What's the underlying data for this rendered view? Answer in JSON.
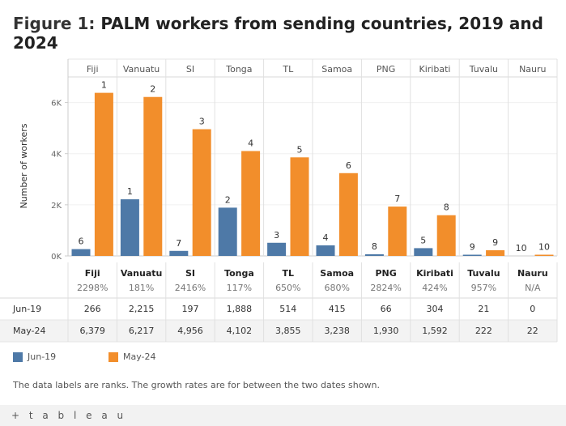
{
  "title": {
    "prefix": "Figure 1:",
    "main": "PALM workers from sending countries, 2019 and 2024"
  },
  "legend": {
    "jun19": "Jun-19",
    "may24": "May-24"
  },
  "note": "The data labels are ranks. The growth rates are for between the two dates shown.",
  "footer": {
    "logo": "+ t a b l e a u"
  },
  "colors": {
    "jun19": "#4e79a7",
    "may24": "#f28e2b"
  },
  "chart_data": {
    "type": "bar",
    "title": "Figure 1: PALM workers from sending countries, 2019 and 2024",
    "ylabel": "Number of workers",
    "ylim": [
      0,
      7000
    ],
    "yticks": [
      {
        "value": 0,
        "label": "0K"
      },
      {
        "value": 2000,
        "label": "2K"
      },
      {
        "value": 4000,
        "label": "4K"
      },
      {
        "value": 6000,
        "label": "6K"
      }
    ],
    "categories": [
      "Fiji",
      "Vanuatu",
      "SI",
      "Tonga",
      "TL",
      "Samoa",
      "PNG",
      "Kiribati",
      "Tuvalu",
      "Nauru"
    ],
    "growth": [
      "2298%",
      "181%",
      "2416%",
      "117%",
      "650%",
      "680%",
      "2824%",
      "424%",
      "957%",
      "N/A"
    ],
    "series": [
      {
        "name": "Jun-19",
        "values": [
          266,
          2215,
          197,
          1888,
          514,
          415,
          66,
          304,
          21,
          0
        ],
        "display": [
          "266",
          "2,215",
          "197",
          "1,888",
          "514",
          "415",
          "66",
          "304",
          "21",
          "0"
        ],
        "ranks": [
          "6",
          "1",
          "7",
          "2",
          "3",
          "4",
          "8",
          "5",
          "9",
          "10"
        ]
      },
      {
        "name": "May-24",
        "values": [
          6379,
          6217,
          4956,
          4102,
          3855,
          3238,
          1930,
          1592,
          222,
          22
        ],
        "display": [
          "6,379",
          "6,217",
          "4,956",
          "4,102",
          "3,855",
          "3,238",
          "1,930",
          "1,592",
          "222",
          "22"
        ],
        "ranks": [
          "1",
          "2",
          "3",
          "4",
          "5",
          "6",
          "7",
          "8",
          "9",
          "10"
        ]
      }
    ],
    "grid": true,
    "legend_position": "bottom-left"
  }
}
